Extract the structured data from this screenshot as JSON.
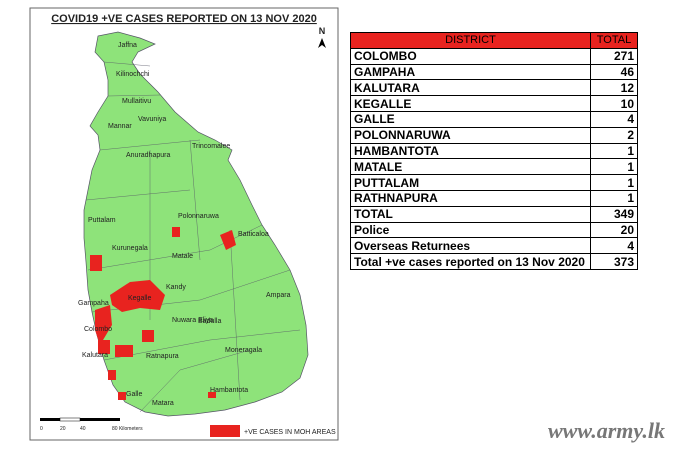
{
  "map": {
    "title": "COVID19 +VE CASES REPORTED ON 13 NOV 2020",
    "north": "N",
    "places": [
      "Jaffna",
      "Kilinochchi",
      "Mullaitivu",
      "Mannar",
      "Vavuniya",
      "Trincomalee",
      "Anuradhapura",
      "Puttalam",
      "Polonnaruwa",
      "Batticaloa",
      "Kurunegala",
      "Matale",
      "Kandy",
      "Ampara",
      "Gampaha",
      "Kegalle",
      "Colombo",
      "Nuwara Eliya",
      "Badulla",
      "Kalutara",
      "Ratnapura",
      "Moneragala",
      "Hambantota",
      "Galle",
      "Matara"
    ],
    "scale": [
      "0",
      "20",
      "40",
      "80 Kilometers"
    ],
    "legend": "+VE CASES IN MOH AREAS"
  },
  "table": {
    "header": [
      "DISTRICT",
      "TOTAL"
    ],
    "rows": [
      [
        "COLOMBO",
        271
      ],
      [
        "GAMPAHA",
        46
      ],
      [
        "KALUTARA",
        12
      ],
      [
        "KEGALLE",
        10
      ],
      [
        "GALLE",
        4
      ],
      [
        "POLONNARUWA",
        2
      ],
      [
        "HAMBANTOTA",
        1
      ],
      [
        "MATALE",
        1
      ],
      [
        "PUTTALAM",
        1
      ],
      [
        "RATHNAPURA",
        1
      ],
      [
        "TOTAL",
        349
      ],
      [
        "Police",
        20
      ],
      [
        "Overseas Returnees",
        4
      ],
      [
        "Total +ve cases reported on 13 Nov 2020",
        373
      ]
    ]
  },
  "watermark": "www.army.lk"
}
